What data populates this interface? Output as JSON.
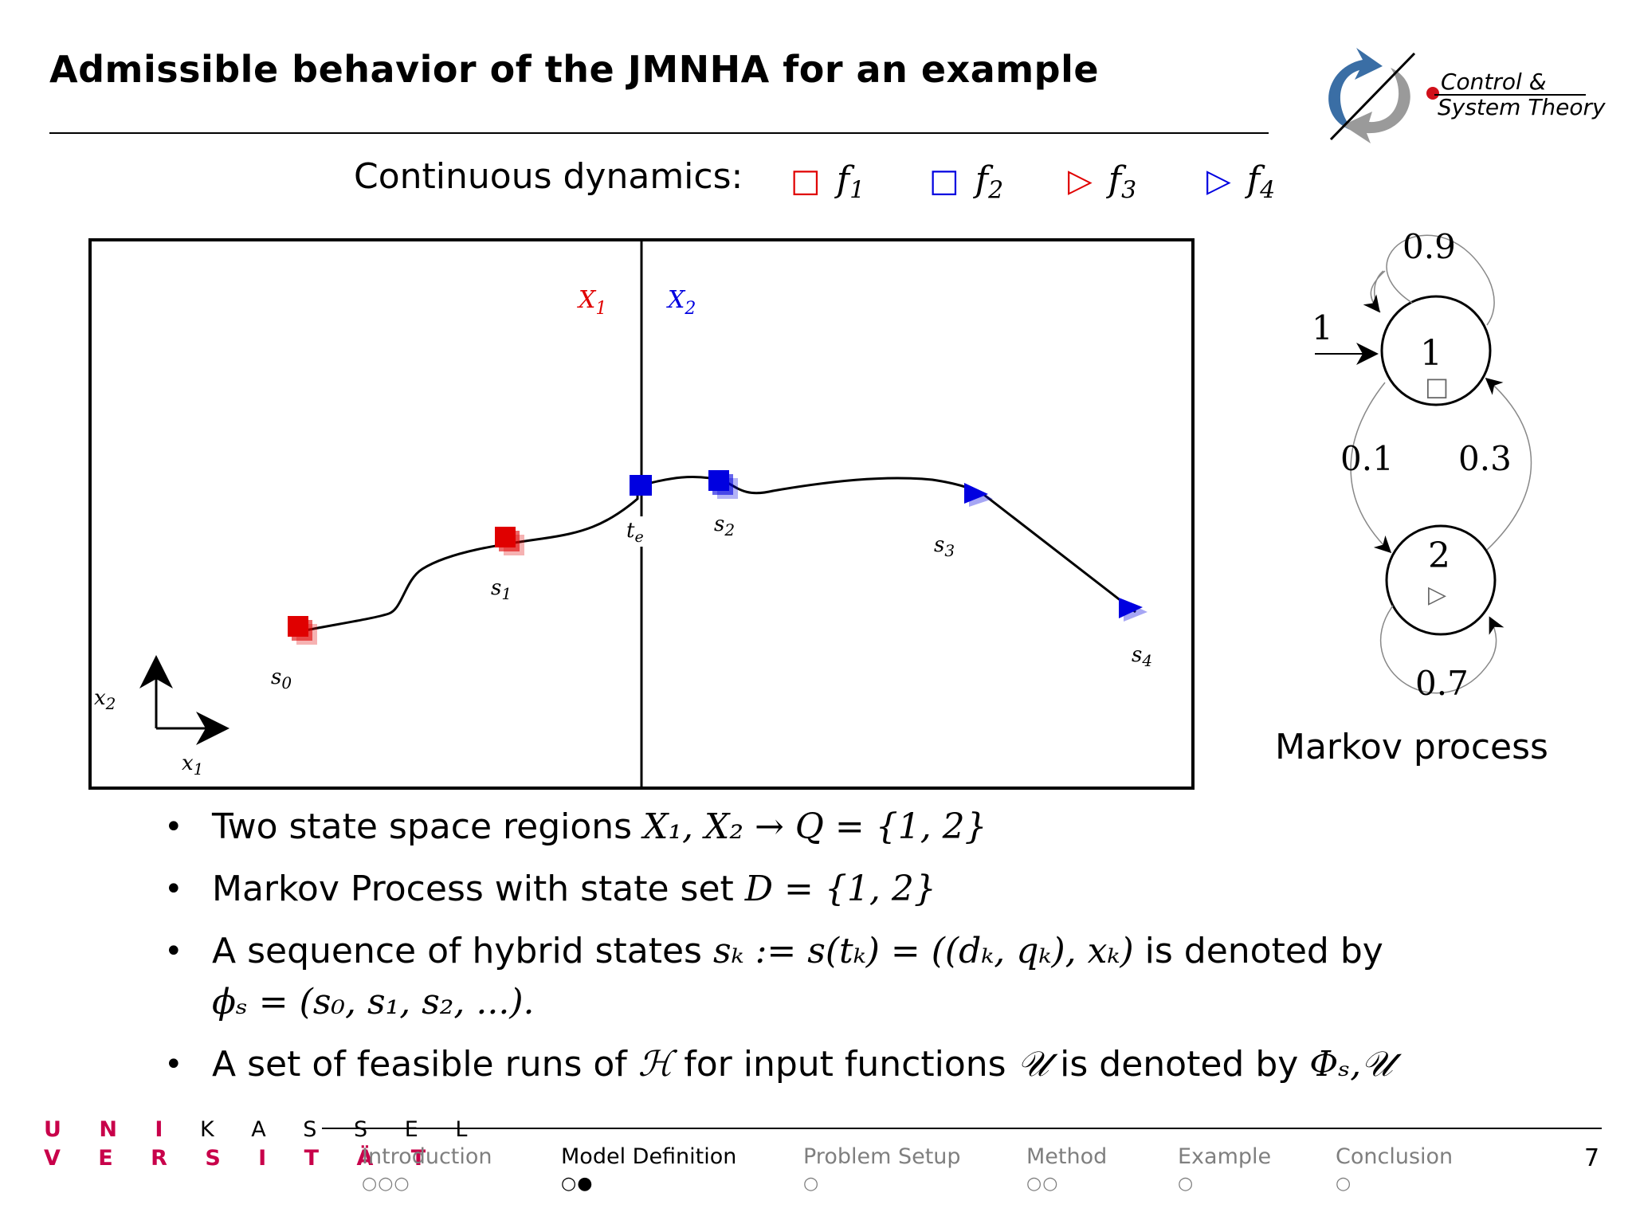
{
  "slide": {
    "title": "Admissible behavior of the JMNHA for an example"
  },
  "logo": {
    "line1": "Control &",
    "line2": "System Theory",
    "accent_color": "#3a6ea5",
    "dot_color": "#d0101a"
  },
  "legend": {
    "label": "Continuous dynamics:",
    "items": [
      {
        "symbol": "□",
        "name": "f",
        "sub": "1",
        "color": "#e00000"
      },
      {
        "symbol": "□",
        "name": "f",
        "sub": "2",
        "color": "#0000e0"
      },
      {
        "symbol": "▷",
        "name": "f",
        "sub": "3",
        "color": "#e00000"
      },
      {
        "symbol": "▷",
        "name": "f",
        "sub": "4",
        "color": "#0000e0"
      }
    ]
  },
  "figure": {
    "region_left": {
      "name": "X",
      "sub": "1",
      "color": "#e00000"
    },
    "region_right": {
      "name": "X",
      "sub": "2",
      "color": "#0000e0"
    },
    "axis_y_label": {
      "name": "x",
      "sub": "2"
    },
    "axis_x_label": {
      "name": "x",
      "sub": "1"
    },
    "switch_time": {
      "name": "t",
      "sub": "e"
    },
    "states": [
      {
        "name": "s",
        "sub": "0",
        "marker": "square",
        "color": "#e00000"
      },
      {
        "name": "s",
        "sub": "1",
        "marker": "square",
        "color": "#e00000"
      },
      {
        "name": "s",
        "sub": "2",
        "marker": "square",
        "color": "#0000e0"
      },
      {
        "name": "s",
        "sub": "3",
        "marker": "triangle",
        "color": "#0000e0"
      },
      {
        "name": "s",
        "sub": "4",
        "marker": "triangle",
        "color": "#0000e0"
      }
    ]
  },
  "markov": {
    "caption": "Markov process",
    "initial_prob": "1",
    "states": [
      {
        "label": "1",
        "symbol": "□"
      },
      {
        "label": "2",
        "symbol": "▷"
      }
    ],
    "transitions": {
      "self_1": "0.9",
      "p_1_to_2": "0.1",
      "p_2_to_1": "0.3",
      "self_2": "0.7"
    }
  },
  "bullets": [
    {
      "lead": "Two state space regions ",
      "math": "X₁, X₂ → Q = {1, 2}"
    },
    {
      "lead": "Markov Process with state set ",
      "math": "D = {1, 2}"
    },
    {
      "lead": "A sequence of hybrid states ",
      "math": "sₖ := s(tₖ) = ((dₖ, qₖ), xₖ)",
      "tail": " is denoted by",
      "math2": "ϕₛ = (s₀, s₁, s₂, ...)."
    },
    {
      "lead": "A set of feasible runs of ",
      "math": "ℋ",
      "mid": " for input functions ",
      "math2": "𝒰",
      "tail": " is denoted by ",
      "math3": "Φₛ,𝒰"
    }
  ],
  "university": {
    "row1_red": "U N I",
    "row1_rest": "K A S S E L",
    "row2": "V E R S I T Ä T"
  },
  "nav": {
    "sections": [
      {
        "label": "Introduction",
        "dots": "○○○",
        "active": false
      },
      {
        "label": "Model Definition",
        "dots": "○●",
        "active": true
      },
      {
        "label": "Problem Setup",
        "dots": "○",
        "active": false
      },
      {
        "label": "Method",
        "dots": "○○",
        "active": false
      },
      {
        "label": "Example",
        "dots": "○",
        "active": false
      },
      {
        "label": "Conclusion",
        "dots": "○",
        "active": false
      }
    ],
    "page_number": "7"
  }
}
